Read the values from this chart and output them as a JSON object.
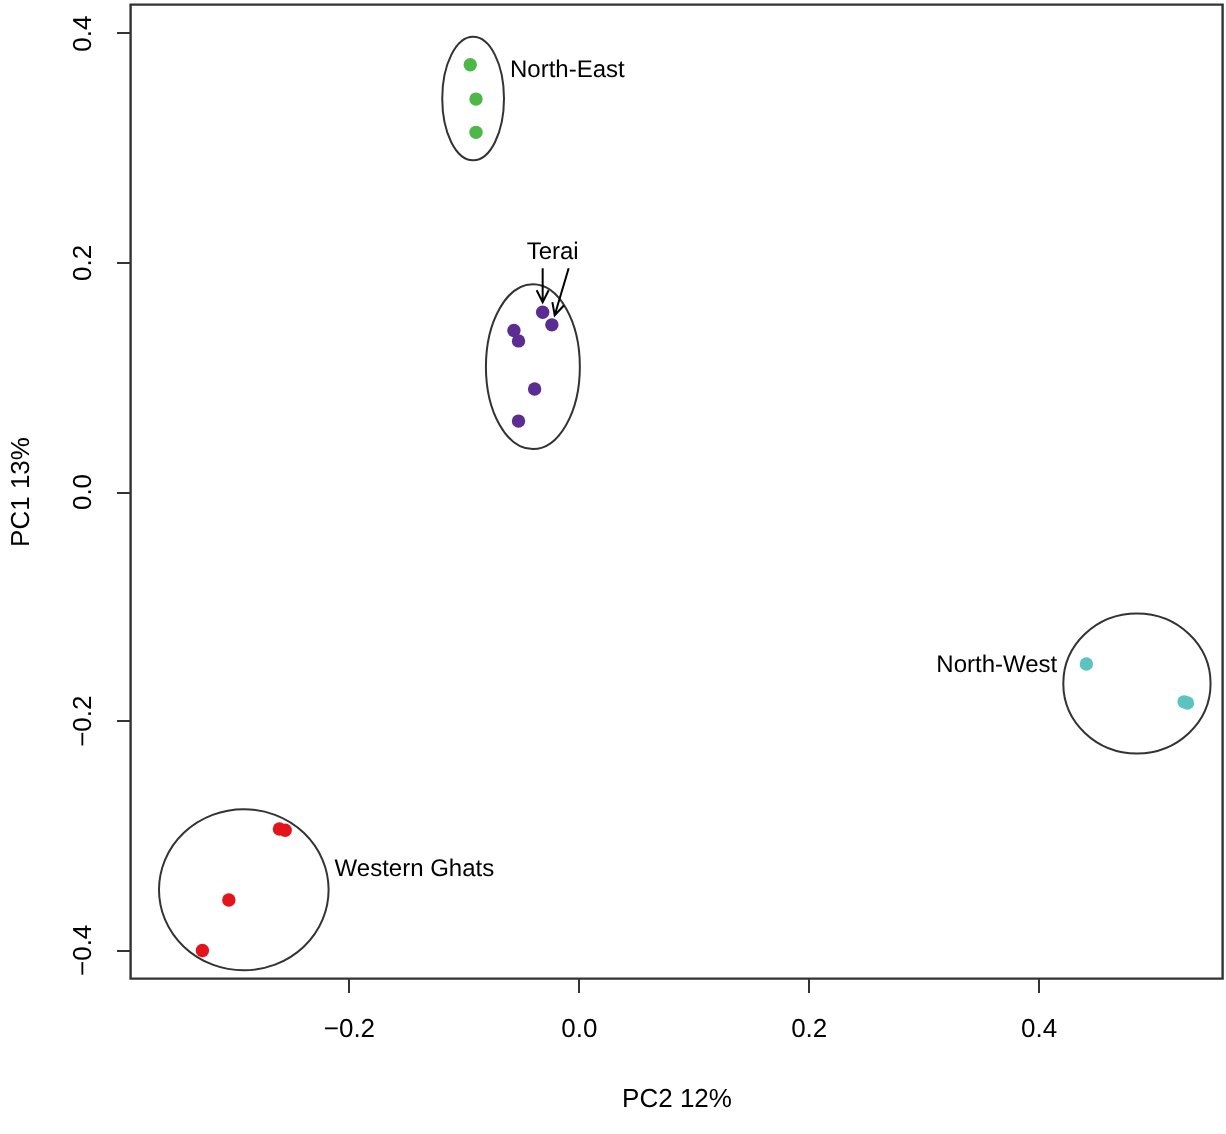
{
  "chart_data": {
    "type": "scatter",
    "xlabel": "PC2    12%",
    "ylabel": "PC1    13%",
    "xlim": [
      -0.39,
      0.56
    ],
    "ylim": [
      -0.425,
      0.425
    ],
    "xticks": [
      -0.2,
      {
        "value": 0,
        "label": "0.0"
      },
      0.2,
      0.4
    ],
    "yticks": [
      -0.4,
      -0.2,
      {
        "value": 0,
        "label": "0.0"
      },
      0.2,
      0.4
    ],
    "grid": false,
    "marker": "circle",
    "series": [
      {
        "name": "North-East",
        "color": "#4db848",
        "x": [
          -0.094,
          -0.089,
          -0.089
        ],
        "values": [
          0.372,
          0.342,
          0.313
        ]
      },
      {
        "color": "#5b2c91",
        "x": [
          -0.031,
          -0.023,
          -0.056,
          -0.052,
          -0.038,
          -0.052
        ],
        "values": [
          0.156,
          0.145,
          0.14,
          0.131,
          0.089,
          0.061
        ]
      },
      {
        "name": "Western Ghats",
        "color": "#e3141b",
        "x": [
          -0.26,
          -0.255,
          -0.304,
          -0.327
        ],
        "values": [
          -0.295,
          -0.296,
          -0.357,
          -0.401
        ]
      },
      {
        "name": "North-West",
        "color": "#5cc4c0",
        "x": [
          0.442,
          0.53,
          0.527
        ],
        "values": [
          -0.151,
          -0.185,
          -0.184
        ]
      }
    ],
    "annotations": [
      {
        "text": "Terai",
        "x": -0.031,
        "y": 0.156
      }
    ]
  }
}
